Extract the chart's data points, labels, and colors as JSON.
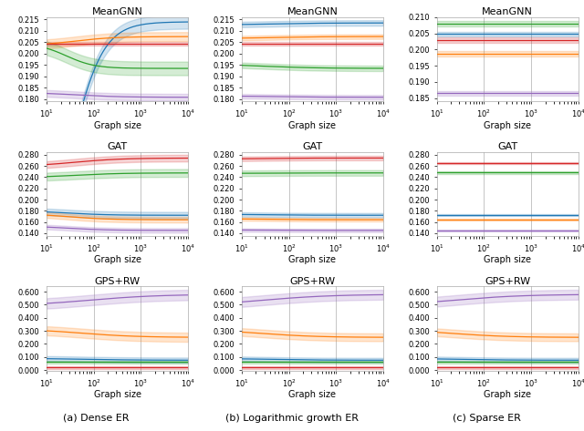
{
  "row_titles": [
    "MeanGNN",
    "GAT",
    "GPS+RW"
  ],
  "col_subtitles": [
    "(a) Dense ER",
    "(b) Logarithmic growth ER",
    "(c) Sparse ER"
  ],
  "xlabel": "Graph size",
  "colors": [
    "#1f77b4",
    "#ff7f0e",
    "#d62728",
    "#2ca02c",
    "#9467bd"
  ],
  "ylims": [
    [
      [
        0.179,
        0.216
      ],
      [
        0.179,
        0.216
      ],
      [
        0.184,
        0.21
      ]
    ],
    [
      [
        0.135,
        0.285
      ],
      [
        0.135,
        0.285
      ],
      [
        0.135,
        0.285
      ]
    ],
    [
      [
        -0.005,
        0.64
      ],
      [
        -0.005,
        0.64
      ],
      [
        -0.005,
        0.64
      ]
    ]
  ],
  "yticks": [
    [
      [
        0.18,
        0.185,
        0.19,
        0.195,
        0.2,
        0.205,
        0.21,
        0.215
      ],
      [
        0.18,
        0.185,
        0.19,
        0.195,
        0.2,
        0.205,
        0.21,
        0.215
      ],
      [
        0.185,
        0.19,
        0.195,
        0.2,
        0.205,
        0.21
      ]
    ],
    [
      [
        0.14,
        0.16,
        0.18,
        0.2,
        0.22,
        0.24,
        0.26,
        0.28
      ],
      [
        0.14,
        0.16,
        0.18,
        0.2,
        0.22,
        0.24,
        0.26,
        0.28
      ],
      [
        0.14,
        0.16,
        0.18,
        0.2,
        0.22,
        0.24,
        0.26,
        0.28
      ]
    ],
    [
      [
        0.0,
        0.1,
        0.2,
        0.3,
        0.4,
        0.5,
        0.6
      ],
      [
        0.0,
        0.1,
        0.2,
        0.3,
        0.4,
        0.5,
        0.6
      ],
      [
        0.0,
        0.1,
        0.2,
        0.3,
        0.4,
        0.5,
        0.6
      ]
    ]
  ]
}
